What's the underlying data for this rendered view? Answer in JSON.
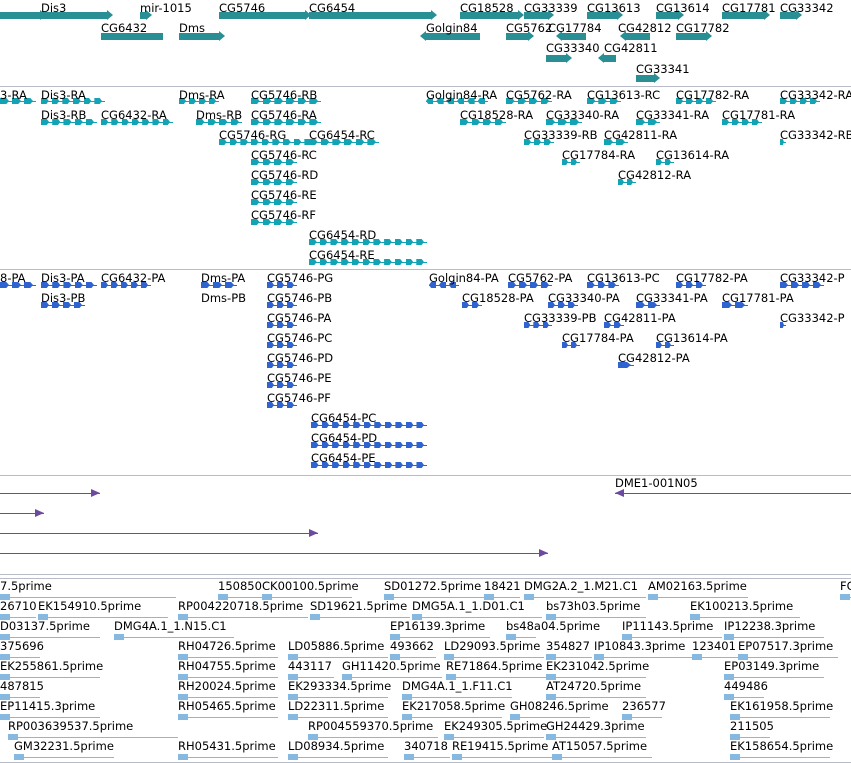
{
  "app": {
    "view": "genome-browser-tracks"
  },
  "colors": {
    "gene": "#2a8f94",
    "transcript": "#12a3b5",
    "protein": "#2f63cf",
    "clone": "#6b4aa0",
    "est": "#87b8df",
    "separator": "#b8bcc8"
  },
  "tracks": [
    {
      "id": "genes",
      "color_key": "gene",
      "features": [
        {
          "label": "",
          "arrow": "r"
        },
        {
          "label": "Dis3",
          "arrow": "r"
        },
        {
          "label": "mir-1015",
          "arrow": "r"
        },
        {
          "label": "CG5746",
          "arrow": "r"
        },
        {
          "label": "CG6454",
          "arrow": "r"
        },
        {
          "label": "CG18528",
          "arrow": "r"
        },
        {
          "label": "CG33339",
          "arrow": "r"
        },
        {
          "label": "CG13613",
          "arrow": "r"
        },
        {
          "label": "CG13614",
          "arrow": "r"
        },
        {
          "label": "CG17781",
          "arrow": "r"
        },
        {
          "label": "CG33342",
          "arrow": "r"
        },
        {
          "label": "CG6432",
          "arrow": ""
        },
        {
          "label": "Dms",
          "arrow": "r"
        },
        {
          "label": "Golgin84",
          "arrow": "l"
        },
        {
          "label": "CG5762",
          "arrow": "r"
        },
        {
          "label": "CG17784",
          "arrow": "l"
        },
        {
          "label": "CG42812",
          "arrow": "l"
        },
        {
          "label": "CG17782",
          "arrow": "r"
        },
        {
          "label": "CG33340",
          "arrow": "r"
        },
        {
          "label": "CG42811",
          "arrow": "l"
        },
        {
          "label": "CG33341",
          "arrow": "r"
        }
      ]
    },
    {
      "id": "transcripts",
      "color_key": "transcript",
      "features": [
        {
          "label": "3-RA",
          "arrow": ""
        },
        {
          "label": "Dis3-RA",
          "arrow": ""
        },
        {
          "label": "Dms-RA",
          "arrow": ""
        },
        {
          "label": "CG5746-RB",
          "arrow": ""
        },
        {
          "label": "Golgin84-RA",
          "arrow": "l"
        },
        {
          "label": "CG5762-RA",
          "arrow": ""
        },
        {
          "label": "CG13613-RC",
          "arrow": ""
        },
        {
          "label": "CG17782-RA",
          "arrow": ""
        },
        {
          "label": "CG33342-RA",
          "arrow": ""
        },
        {
          "label": "Dis3-RB",
          "arrow": ""
        },
        {
          "label": "CG6432-RA",
          "arrow": ""
        },
        {
          "label": "Dms-RB",
          "arrow": ""
        },
        {
          "label": "CG5746-RA",
          "arrow": ""
        },
        {
          "label": "CG18528-RA",
          "arrow": ""
        },
        {
          "label": "CG33340-RA",
          "arrow": ""
        },
        {
          "label": "CG33341-RA",
          "arrow": ""
        },
        {
          "label": "CG17781-RA",
          "arrow": ""
        },
        {
          "label": "CG5746-RG",
          "arrow": ""
        },
        {
          "label": "CG6454-RC",
          "arrow": ""
        },
        {
          "label": "CG33339-RB",
          "arrow": ""
        },
        {
          "label": "CG42811-RA",
          "arrow": ""
        },
        {
          "label": "CG33342-RB",
          "arrow": ""
        },
        {
          "label": "CG5746-RC",
          "arrow": ""
        },
        {
          "label": "CG17784-RA",
          "arrow": ""
        },
        {
          "label": "CG13614-RA",
          "arrow": ""
        },
        {
          "label": "CG5746-RD",
          "arrow": ""
        },
        {
          "label": "CG42812-RA",
          "arrow": ""
        },
        {
          "label": "CG5746-RE",
          "arrow": ""
        },
        {
          "label": "CG5746-RF",
          "arrow": ""
        },
        {
          "label": "CG6454-RD",
          "arrow": ""
        },
        {
          "label": "CG6454-RE",
          "arrow": ""
        }
      ]
    },
    {
      "id": "proteins",
      "color_key": "protein",
      "features": [
        {
          "label": "8-PA",
          "arrow": ""
        },
        {
          "label": "Dis3-PA",
          "arrow": ""
        },
        {
          "label": "CG6432-PA",
          "arrow": ""
        },
        {
          "label": "Dms-PA",
          "arrow": ""
        },
        {
          "label": "CG5746-PG",
          "arrow": ""
        },
        {
          "label": "Golgin84-PA",
          "arrow": "l"
        },
        {
          "label": "CG5762-PA",
          "arrow": ""
        },
        {
          "label": "CG13613-PC",
          "arrow": ""
        },
        {
          "label": "CG17782-PA",
          "arrow": ""
        },
        {
          "label": "CG33342-P",
          "arrow": ""
        },
        {
          "label": "Dis3-PB",
          "arrow": ""
        },
        {
          "label": "Dms-PB",
          "arrow": ""
        },
        {
          "label": "CG5746-PB",
          "arrow": ""
        },
        {
          "label": "CG18528-PA",
          "arrow": ""
        },
        {
          "label": "CG33340-PA",
          "arrow": ""
        },
        {
          "label": "CG33341-PA",
          "arrow": ""
        },
        {
          "label": "CG17781-PA",
          "arrow": ""
        },
        {
          "label": "CG5746-PA",
          "arrow": ""
        },
        {
          "label": "CG33339-PB",
          "arrow": ""
        },
        {
          "label": "CG42811-PA",
          "arrow": ""
        },
        {
          "label": "CG33342-P",
          "arrow": ""
        },
        {
          "label": "CG5746-PC",
          "arrow": ""
        },
        {
          "label": "CG17784-PA",
          "arrow": ""
        },
        {
          "label": "CG13614-PA",
          "arrow": ""
        },
        {
          "label": "CG5746-PD",
          "arrow": ""
        },
        {
          "label": "CG42812-PA",
          "arrow": ""
        },
        {
          "label": "CG5746-PE",
          "arrow": ""
        },
        {
          "label": "CG5746-PF",
          "arrow": ""
        },
        {
          "label": "CG6454-PC",
          "arrow": ""
        },
        {
          "label": "CG6454-PD",
          "arrow": ""
        },
        {
          "label": "CG6454-PE",
          "arrow": ""
        }
      ]
    },
    {
      "id": "clones",
      "color_key": "clone",
      "features": [
        {
          "label": "",
          "arrow": "r"
        },
        {
          "label": "DME1-001N05",
          "arrow": "l"
        },
        {
          "label": "",
          "arrow": "r"
        },
        {
          "label": "",
          "arrow": "r"
        },
        {
          "label": "",
          "arrow": "r"
        }
      ]
    },
    {
      "id": "est",
      "color_key": "est",
      "features": [
        {
          "label": "7.5prime",
          "arrow": ""
        },
        {
          "label": "150850",
          "arrow": "r"
        },
        {
          "label": "CK00100.5prime",
          "arrow": "r"
        },
        {
          "label": "SD01272.5prime",
          "arrow": ""
        },
        {
          "label": "18421",
          "arrow": ""
        },
        {
          "label": "DMG2A.2_1.M21.C1",
          "arrow": ""
        },
        {
          "label": "AM02163.5prime",
          "arrow": "l"
        },
        {
          "label": "FC",
          "arrow": ""
        },
        {
          "label": "26710",
          "arrow": ""
        },
        {
          "label": "EK154910.5prime",
          "arrow": ""
        },
        {
          "label": "RP004220718.5prime",
          "arrow": ""
        },
        {
          "label": "SD19621.5prime",
          "arrow": ""
        },
        {
          "label": "DMG5A.1_1.D01.C1",
          "arrow": ""
        },
        {
          "label": "bs73h03.5prime",
          "arrow": ""
        },
        {
          "label": "EK100213.5prime",
          "arrow": ""
        },
        {
          "label": "D03137.5prime",
          "arrow": ""
        },
        {
          "label": "DMG4A.1_1.N15.C1",
          "arrow": ""
        },
        {
          "label": "EP16139.3prime",
          "arrow": ""
        },
        {
          "label": "bs48a04.5prime",
          "arrow": ""
        },
        {
          "label": "IP11143.5prime",
          "arrow": ""
        },
        {
          "label": "IP12238.3prime",
          "arrow": ""
        },
        {
          "label": "375696",
          "arrow": ""
        },
        {
          "label": "RH04726.5prime",
          "arrow": ""
        },
        {
          "label": "LD05886.5prime",
          "arrow": ""
        },
        {
          "label": "493662",
          "arrow": ""
        },
        {
          "label": "LD29093.5prime",
          "arrow": ""
        },
        {
          "label": "354827",
          "arrow": ""
        },
        {
          "label": "IP10843.3prime",
          "arrow": ""
        },
        {
          "label": "123401",
          "arrow": ""
        },
        {
          "label": "EP07517.3prime",
          "arrow": ""
        },
        {
          "label": "EK255861.5prime",
          "arrow": ""
        },
        {
          "label": "RH04755.5prime",
          "arrow": ""
        },
        {
          "label": "443117",
          "arrow": ""
        },
        {
          "label": "GH11420.5prime",
          "arrow": ""
        },
        {
          "label": "RE71864.5prime",
          "arrow": ""
        },
        {
          "label": "EK231042.5prime",
          "arrow": ""
        },
        {
          "label": "EP03149.3prime",
          "arrow": ""
        },
        {
          "label": "487815",
          "arrow": ""
        },
        {
          "label": "RH20024.5prime",
          "arrow": ""
        },
        {
          "label": "EK293334.5prime",
          "arrow": ""
        },
        {
          "label": "DMG4A.1_1.F11.C1",
          "arrow": ""
        },
        {
          "label": "AT24720.5prime",
          "arrow": ""
        },
        {
          "label": "449486",
          "arrow": ""
        },
        {
          "label": "EP11415.3prime",
          "arrow": ""
        },
        {
          "label": "RH05465.5prime",
          "arrow": ""
        },
        {
          "label": "LD22311.5prime",
          "arrow": ""
        },
        {
          "label": "EK217058.5prime",
          "arrow": ""
        },
        {
          "label": "GH08246.5prime",
          "arrow": ""
        },
        {
          "label": "236577",
          "arrow": ""
        },
        {
          "label": "EK161958.5prime",
          "arrow": ""
        },
        {
          "label": "RP003639537.5prime",
          "arrow": ""
        },
        {
          "label": "RP004559370.5prime",
          "arrow": ""
        },
        {
          "label": "EK249305.5prime",
          "arrow": ""
        },
        {
          "label": "GH24429.3prime",
          "arrow": ""
        },
        {
          "label": "211505",
          "arrow": ""
        },
        {
          "label": "GM32231.5prime",
          "arrow": ""
        },
        {
          "label": "RH05431.5prime",
          "arrow": ""
        },
        {
          "label": "LD08934.5prime",
          "arrow": ""
        },
        {
          "label": "340718",
          "arrow": ""
        },
        {
          "label": "RE19415.5prime",
          "arrow": ""
        },
        {
          "label": "AT15057.5prime",
          "arrow": ""
        },
        {
          "label": "EK158654.5prime",
          "arrow": ""
        }
      ]
    }
  ]
}
